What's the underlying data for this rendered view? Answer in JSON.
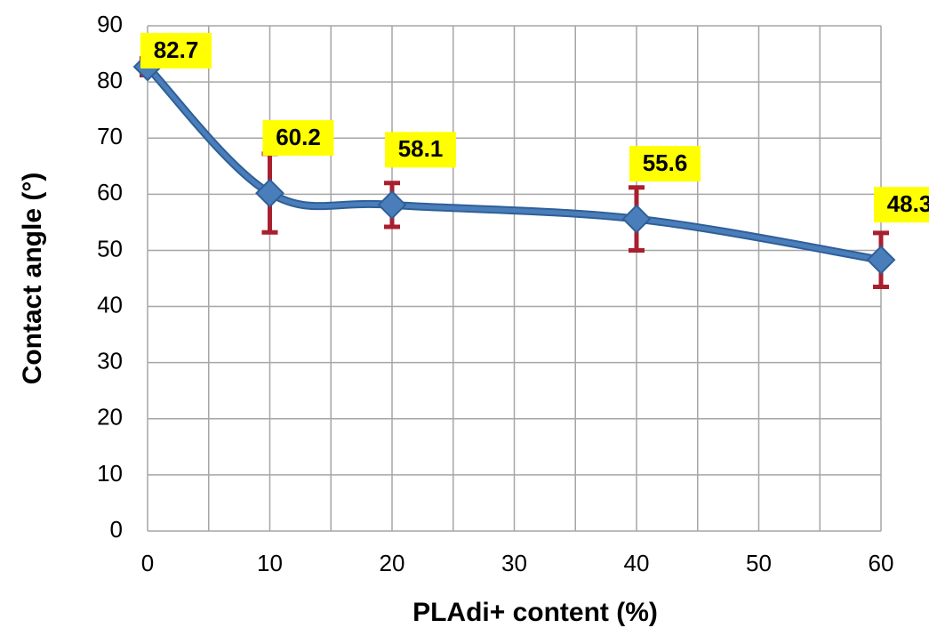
{
  "chart_data": {
    "type": "line",
    "x_label": "PLAdi+ content (%)",
    "y_label": "Contact angle (°)",
    "x": [
      0,
      10,
      20,
      40,
      60
    ],
    "series": [
      {
        "color": "#4a7ebb",
        "values": [
          82.7,
          60.2,
          58.1,
          55.6,
          48.3
        ],
        "errors": [
          1.5,
          7,
          3.9,
          5.6,
          4.8
        ],
        "error_color": "#a8202f"
      }
    ],
    "xlim": [
      0,
      60
    ],
    "xticks": [
      0,
      10,
      20,
      30,
      40,
      50,
      60
    ],
    "x_grid": [
      0,
      5,
      10,
      15,
      20,
      25,
      30,
      35,
      40,
      45,
      50,
      55,
      60
    ],
    "ylim": [
      0,
      90
    ],
    "yticks": [
      0,
      10,
      20,
      30,
      40,
      50,
      60,
      70,
      80,
      90
    ],
    "grid": true,
    "smooth": true,
    "data_labels": true
  }
}
